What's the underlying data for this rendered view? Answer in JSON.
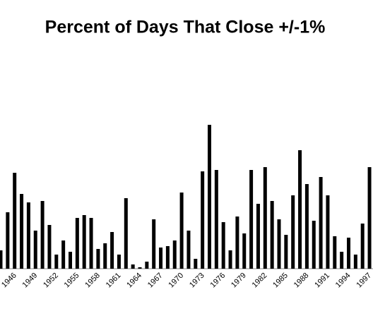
{
  "chart_data": {
    "type": "bar",
    "title": "Percent of Days That Close +/-1%",
    "categories": [
      null,
      null,
      "1946",
      null,
      null,
      "1949",
      null,
      null,
      "1952",
      null,
      null,
      "1955",
      null,
      null,
      "1958",
      null,
      null,
      "1961",
      null,
      null,
      "1964",
      null,
      null,
      "1967",
      null,
      null,
      "1970",
      null,
      null,
      "1973",
      null,
      null,
      "1976",
      null,
      null,
      "1979",
      null,
      null,
      "1982",
      null,
      null,
      "1985",
      null,
      null,
      "1988",
      null,
      null,
      "1991",
      null,
      null,
      "1994",
      null,
      null,
      "1997"
    ],
    "values": [
      6.5,
      20,
      34,
      26.5,
      23.5,
      13.5,
      24,
      15.5,
      5,
      10,
      6,
      18,
      19,
      18,
      7,
      9,
      13,
      5,
      25,
      1.5,
      0.5,
      2.5,
      17.5,
      7.5,
      8,
      10,
      27,
      13.5,
      3.5,
      34.5,
      51,
      35,
      16.5,
      6.5,
      18.5,
      12.5,
      35,
      23,
      36,
      24,
      17.5,
      12,
      26,
      42,
      30,
      17,
      32.5,
      26,
      11.5,
      6,
      11,
      5,
      16,
      36
    ],
    "color": "#000000",
    "ylim": [
      0,
      70
    ]
  }
}
